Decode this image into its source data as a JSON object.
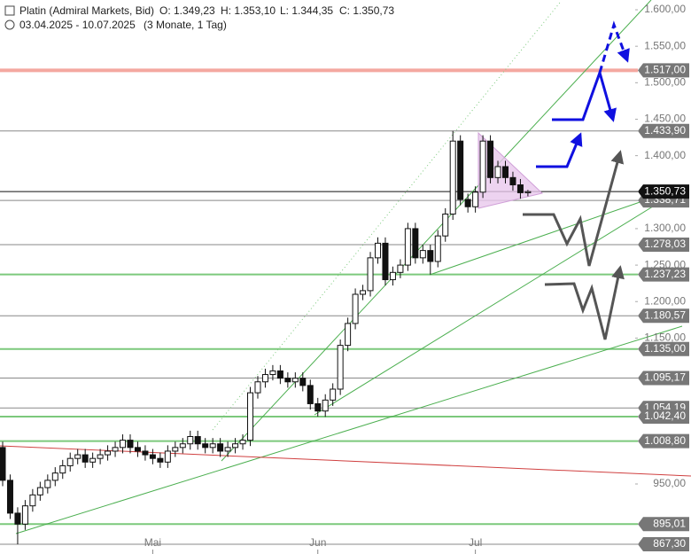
{
  "header": {
    "instrument": "Platin (Admiral Markets, Bid)",
    "open": "O: 1.349,23",
    "high": "H: 1.353,10",
    "low": "L: 1.344,35",
    "close": "C: 1.350,73",
    "range": "03.04.2025 - 10.07.2025",
    "period": "(3 Monate, 1 Tag)"
  },
  "chart_data": {
    "type": "candlestick",
    "categories": [
      null,
      null,
      null,
      null,
      null,
      null,
      null,
      null,
      null,
      null,
      null,
      null,
      null,
      null,
      null,
      null,
      null,
      null,
      null,
      null,
      "Mai",
      null,
      null,
      null,
      null,
      null,
      null,
      null,
      null,
      null,
      null,
      null,
      null,
      null,
      null,
      null,
      null,
      null,
      null,
      null,
      null,
      null,
      "Jun",
      null,
      null,
      null,
      null,
      null,
      null,
      null,
      null,
      null,
      null,
      null,
      null,
      null,
      null,
      null,
      null,
      null,
      null,
      null,
      null,
      "Jul",
      null,
      null,
      null,
      null,
      null,
      null,
      null
    ],
    "open": [
      1000,
      955,
      910,
      895,
      920,
      935,
      945,
      955,
      965,
      975,
      985,
      990,
      980,
      985,
      990,
      995,
      1000,
      1010,
      1000,
      995,
      990,
      985,
      980,
      995,
      1000,
      1005,
      1015,
      1005,
      1000,
      1005,
      995,
      1000,
      1005,
      1010,
      1075,
      1090,
      1100,
      1105,
      1095,
      1090,
      1095,
      1085,
      1060,
      1050,
      1065,
      1080,
      1140,
      1170,
      1210,
      1215,
      1260,
      1280,
      1230,
      1240,
      1250,
      1300,
      1260,
      1270,
      1255,
      1290,
      1320,
      1420,
      1340,
      1330,
      1350,
      1420,
      1370,
      1385,
      1370,
      1360,
      1349.23
    ],
    "high": [
      1008,
      963,
      918,
      928,
      943,
      953,
      963,
      973,
      983,
      993,
      998,
      998,
      993,
      998,
      1003,
      1008,
      1018,
      1018,
      1008,
      1003,
      998,
      993,
      1003,
      1008,
      1013,
      1023,
      1023,
      1013,
      1013,
      1013,
      1008,
      1013,
      1018,
      1083,
      1098,
      1108,
      1113,
      1113,
      1103,
      1103,
      1103,
      1093,
      1068,
      1073,
      1088,
      1148,
      1178,
      1218,
      1223,
      1268,
      1288,
      1288,
      1248,
      1258,
      1308,
      1308,
      1278,
      1278,
      1298,
      1328,
      1433.9,
      1428,
      1348,
      1358,
      1428,
      1428,
      1393,
      1393,
      1378,
      1368,
      1353.1
    ],
    "low": [
      947,
      902,
      867.3,
      887,
      912,
      927,
      937,
      947,
      957,
      967,
      977,
      972,
      972,
      977,
      982,
      987,
      992,
      992,
      987,
      982,
      977,
      972,
      972,
      987,
      992,
      997,
      997,
      992,
      992,
      987,
      987,
      992,
      997,
      1002,
      1067,
      1082,
      1092,
      1087,
      1082,
      1082,
      1077,
      1052,
      1042.4,
      1042,
      1057,
      1072,
      1132,
      1162,
      1202,
      1207,
      1252,
      1222,
      1222,
      1232,
      1242,
      1252,
      1252,
      1237.23,
      1247,
      1282,
      1312,
      1332,
      1322,
      1322,
      1342,
      1362,
      1362,
      1362,
      1352,
      1341,
      1344.35
    ],
    "close": [
      955,
      910,
      895,
      920,
      935,
      945,
      955,
      965,
      975,
      985,
      990,
      980,
      985,
      990,
      995,
      1000,
      1010,
      1000,
      995,
      990,
      985,
      980,
      995,
      1000,
      1005,
      1015,
      1005,
      1000,
      1005,
      995,
      1000,
      1005,
      1010,
      1075,
      1090,
      1100,
      1105,
      1095,
      1090,
      1095,
      1085,
      1060,
      1050,
      1065,
      1080,
      1140,
      1170,
      1210,
      1215,
      1260,
      1280,
      1230,
      1240,
      1250,
      1300,
      1260,
      1270,
      1255,
      1290,
      1320,
      1420,
      1340,
      1330,
      1350,
      1420,
      1370,
      1385,
      1370,
      1360,
      1349.23,
      1350.73
    ],
    "up_color": "#ffffff",
    "down_color": "#111111",
    "ylim": [
      854,
      1613.4
    ],
    "yticks": [
      {
        "value": 1600,
        "label": "1.600,00"
      },
      {
        "value": 1550,
        "label": "1.550,00"
      },
      {
        "value": 1500,
        "label": "1.500,00"
      },
      {
        "value": 1450,
        "label": "1.450,00"
      },
      {
        "value": 1400,
        "label": "1.400,00"
      },
      {
        "value": 1300,
        "label": "1.300,00"
      },
      {
        "value": 1250,
        "label": "1.250,00"
      },
      {
        "value": 1200,
        "label": "1.200,00"
      },
      {
        "value": 1150,
        "label": "1.150,00"
      },
      {
        "value": 950,
        "label": "950,00"
      }
    ],
    "levels": [
      {
        "value": 1517,
        "label": "1.517,00",
        "color": "#f4a8a0"
      },
      {
        "value": 1433.9,
        "label": "1.433,90",
        "color": "#888888"
      },
      {
        "value": 1338.71,
        "label": "1.338,71",
        "color": "#888888"
      },
      {
        "value": 1350.73,
        "label": "1.350,73",
        "color": "#111111"
      },
      {
        "value": 1278.03,
        "label": "1.278,03",
        "color": "#888888"
      },
      {
        "value": 1237.23,
        "label": "1.237,23",
        "color": "#7cc97c"
      },
      {
        "value": 1180.57,
        "label": "1.180,57",
        "color": "#888888"
      },
      {
        "value": 1135,
        "label": "1.135,00",
        "color": "#7cc97c"
      },
      {
        "value": 1095.17,
        "label": "1.095,17",
        "color": "#888888"
      },
      {
        "value": 1054.19,
        "label": "1.054,19",
        "color": "#888888"
      },
      {
        "value": 1042.4,
        "label": "1.042,40",
        "color": "#7cc97c"
      },
      {
        "value": 1008.8,
        "label": "1.008,80",
        "color": "#7cc97c"
      },
      {
        "value": 895.01,
        "label": "895,01",
        "color": "#7cc97c"
      },
      {
        "value": 867.3,
        "label": "867,30",
        "color": "#888888"
      }
    ]
  }
}
